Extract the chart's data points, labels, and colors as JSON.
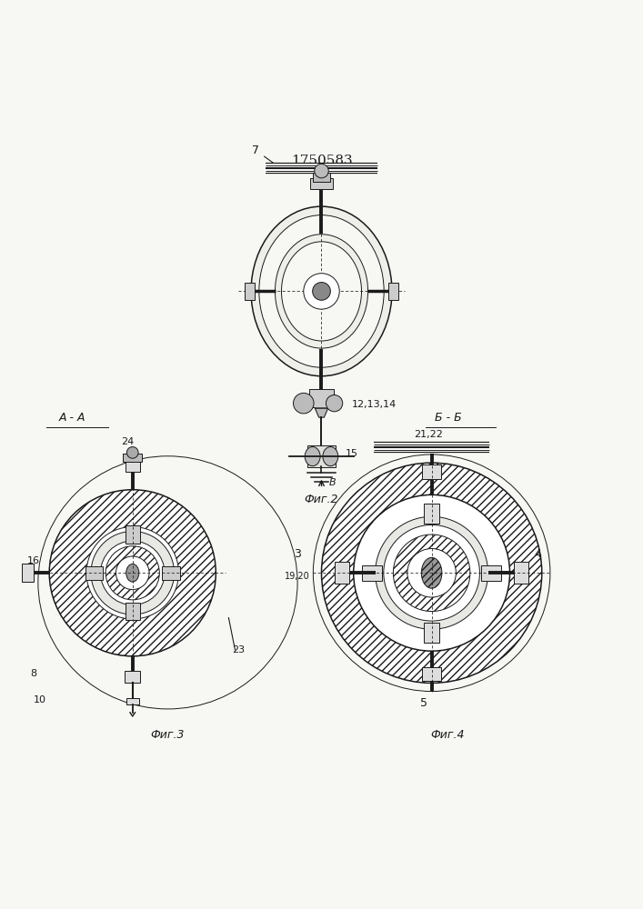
{
  "title": "1750583",
  "bg_color": "#f7f7f4",
  "line_color": "#1a1a1a",
  "fig2": {
    "label": "Фиг.2",
    "arrow_label": "B"
  },
  "fig3": {
    "label": "Фиг.3",
    "section_label": "A - A"
  },
  "fig4": {
    "label": "Фиг.4",
    "section_label": "Б - Б"
  }
}
